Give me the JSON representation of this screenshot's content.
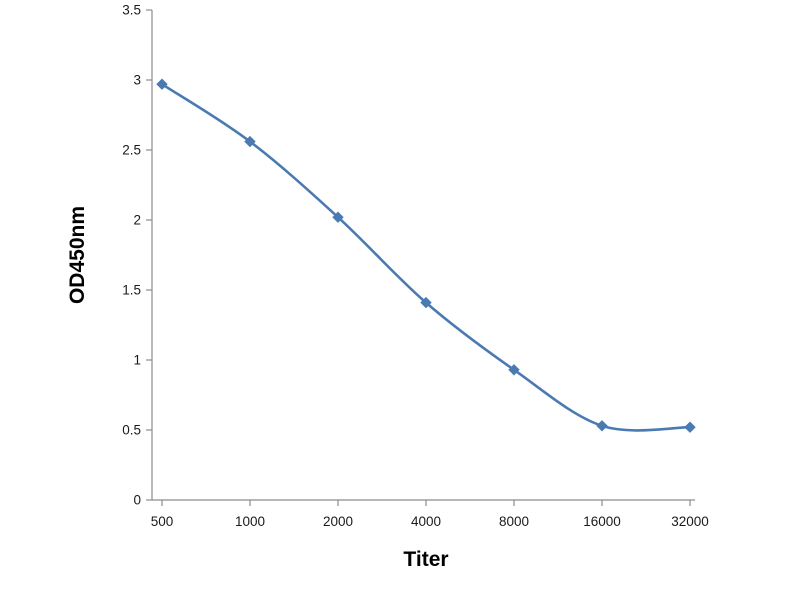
{
  "chart_data": {
    "type": "line",
    "title": "",
    "xlabel": "Titer",
    "ylabel": "OD450nm",
    "categories": [
      "500",
      "1000",
      "2000",
      "4000",
      "8000",
      "16000",
      "32000"
    ],
    "series": [
      {
        "name": "OD450nm",
        "values": [
          2.97,
          2.56,
          2.02,
          1.41,
          0.93,
          0.53,
          0.52
        ]
      }
    ],
    "ylim": [
      0,
      3.5
    ],
    "yticks": [
      0,
      0.5,
      1,
      1.5,
      2,
      2.5,
      3,
      3.5
    ],
    "grid": false,
    "legend": "none",
    "marker": "diamond",
    "line_color": "#4a7ab2",
    "marker_color": "#4a7ab2",
    "axis_color": "#8c8c8c",
    "tick_label_color": "#1a1a1a",
    "background_color": "#ffffff"
  }
}
